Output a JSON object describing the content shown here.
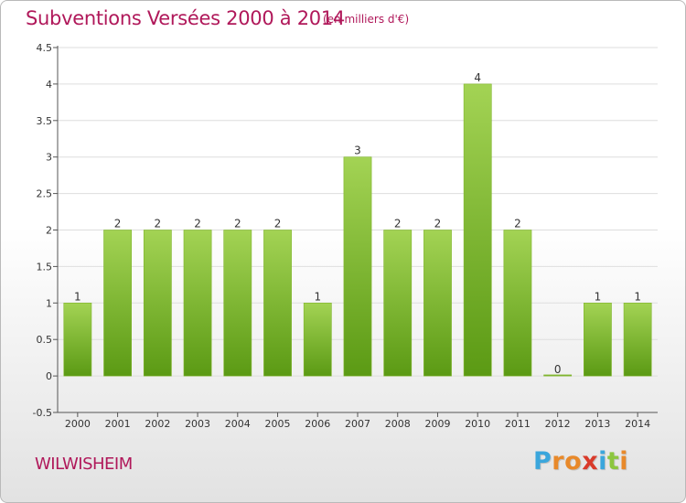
{
  "header": {
    "title": "Subventions Versées 2000 à 2014",
    "unit_note": "(en milliers d'€)"
  },
  "footer": {
    "place": "WILWISHEIM",
    "brand_letters": [
      "P",
      "r",
      "o",
      "x",
      "i",
      "t",
      "i"
    ],
    "brand_colors": [
      "#3aa6dc",
      "#e8892a",
      "#e8892a",
      "#d93a2a",
      "#3aa6dc",
      "#8cc63f",
      "#e8892a"
    ]
  },
  "chart_data": {
    "type": "bar",
    "title": "Subventions Versées 2000 à 2014",
    "subtitle": "(en milliers d'€)",
    "xlabel": "",
    "ylabel": "",
    "categories": [
      "2000",
      "2001",
      "2002",
      "2003",
      "2004",
      "2005",
      "2006",
      "2007",
      "2008",
      "2009",
      "2010",
      "2011",
      "2012",
      "2013",
      "2014"
    ],
    "values": [
      1,
      2,
      2,
      2,
      2,
      2,
      1,
      3,
      2,
      2,
      4,
      2,
      0,
      1,
      1
    ],
    "data_labels": [
      "1",
      "2",
      "2",
      "2",
      "2",
      "2",
      "1",
      "3",
      "2",
      "2",
      "4",
      "2",
      "0",
      "1",
      "1"
    ],
    "ylim": [
      -0.5,
      4.5
    ],
    "yticks": [
      -0.5,
      0,
      0.5,
      1,
      1.5,
      2,
      2.5,
      3,
      3.5,
      4,
      4.5
    ],
    "ytick_labels": [
      "-0.5",
      "0",
      "0.5",
      "1",
      "1.5",
      "2",
      "2.5",
      "3",
      "3.5",
      "4",
      "4.5"
    ],
    "grid": true,
    "colors": {
      "bar_light": "#a3d354",
      "bar_dark": "#5b9a14",
      "grid": "#dedede",
      "axis": "#555555",
      "text": "#333333",
      "title": "#b0185a"
    }
  }
}
